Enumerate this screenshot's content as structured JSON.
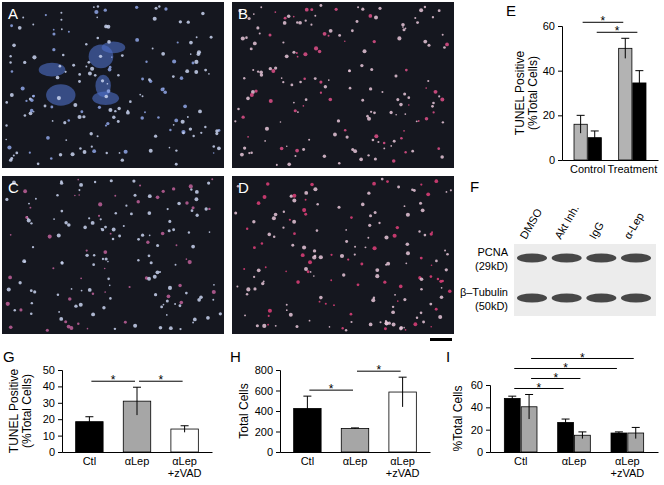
{
  "chart_data": [
    {
      "type": "bar",
      "title": "E",
      "y_label": [
        "TUNEL Positive",
        "(%Total Cells)"
      ],
      "categories": [
        "Control",
        "Treatment"
      ],
      "series": [
        {
          "color": "#b3b3b3",
          "values": [
            16,
            50
          ],
          "errors": [
            4,
            4.5
          ]
        },
        {
          "color": "#000000",
          "values": [
            10,
            34.5
          ],
          "errors": [
            3,
            5.5
          ]
        }
      ],
      "ylim": [
        0,
        60
      ],
      "yticks": [
        0,
        20,
        40,
        60
      ],
      "comparisons": [
        {
          "from": [
            0,
            1
          ],
          "to": [
            1,
            1
          ],
          "label": "*"
        },
        {
          "from": [
            0,
            0
          ],
          "to": [
            1,
            0
          ],
          "label": "*"
        }
      ]
    },
    {
      "type": "bar",
      "title": "G",
      "y_label": [
        "TUNEL Positive",
        "(%Total Cells)"
      ],
      "categories": [
        "Ctl",
        "αLep",
        "αLep\n+zVAD"
      ],
      "series": [
        {
          "colors": [
            "#000000",
            "#a6a6a6",
            "#ffffff"
          ],
          "values": [
            18.5,
            31,
            14
          ],
          "errors": [
            3,
            8.5,
            2
          ]
        }
      ],
      "ylim": [
        0,
        50
      ],
      "yticks": [
        0,
        10,
        20,
        30,
        40,
        50
      ],
      "comparisons": [
        {
          "from": [
            0,
            0
          ],
          "to": [
            1,
            0
          ],
          "label": "*"
        },
        {
          "from": [
            1,
            0
          ],
          "to": [
            2,
            0
          ],
          "label": "*"
        }
      ]
    },
    {
      "type": "bar",
      "title": "H",
      "y_label": [
        "Total Cells"
      ],
      "categories": [
        "Ctl",
        "αLep",
        "αLep\n+zVAD"
      ],
      "series": [
        {
          "colors": [
            "#000000",
            "#a6a6a6",
            "#ffffff"
          ],
          "values": [
            425,
            230,
            585
          ],
          "errors": [
            120,
            5,
            145
          ]
        }
      ],
      "ylim": [
        0,
        800
      ],
      "yticks": [
        0,
        200,
        400,
        600,
        800
      ],
      "comparisons": [
        {
          "from": [
            0,
            0
          ],
          "to": [
            1,
            0
          ],
          "label": "*"
        },
        {
          "from": [
            1,
            0
          ],
          "to": [
            2,
            0
          ],
          "label": "*"
        }
      ]
    },
    {
      "type": "bar",
      "title": "I",
      "y_label": [
        "%Total Cells"
      ],
      "categories": [
        "Ctl",
        "αLep",
        "αLep\n+zVAD"
      ],
      "series": [
        {
          "color": "#000000",
          "values": [
            48,
            26.5,
            17
          ],
          "errors": [
            2,
            3,
            1
          ]
        },
        {
          "color": "#a6a6a6",
          "values": [
            40.5,
            15,
            17
          ],
          "errors": [
            11,
            3,
            5
          ]
        }
      ],
      "ylim": [
        0,
        60
      ],
      "yticks": [
        0,
        20,
        40,
        60
      ],
      "comparisons": [
        {
          "from": [
            0,
            0
          ],
          "to": [
            1,
            0
          ],
          "label": "*"
        },
        {
          "from": [
            0,
            1
          ],
          "to": [
            1,
            1
          ],
          "label": "*"
        },
        {
          "from": [
            0,
            0
          ],
          "to": [
            2,
            0
          ],
          "label": "*"
        },
        {
          "from": [
            0,
            1
          ],
          "to": [
            2,
            1
          ],
          "label": "*"
        }
      ]
    }
  ],
  "images": [
    {
      "title": "A"
    },
    {
      "title": "B"
    },
    {
      "title": "C"
    },
    {
      "title": "D"
    }
  ],
  "blot": {
    "title": "F",
    "lanes": [
      "DMSO",
      "Akt Inh.",
      "IgG",
      "α-Lep"
    ],
    "rows": [
      {
        "name": "PCNA",
        "size": "(29kD)"
      },
      {
        "name": "β–Tubulin",
        "size": "(50kD)"
      }
    ]
  }
}
